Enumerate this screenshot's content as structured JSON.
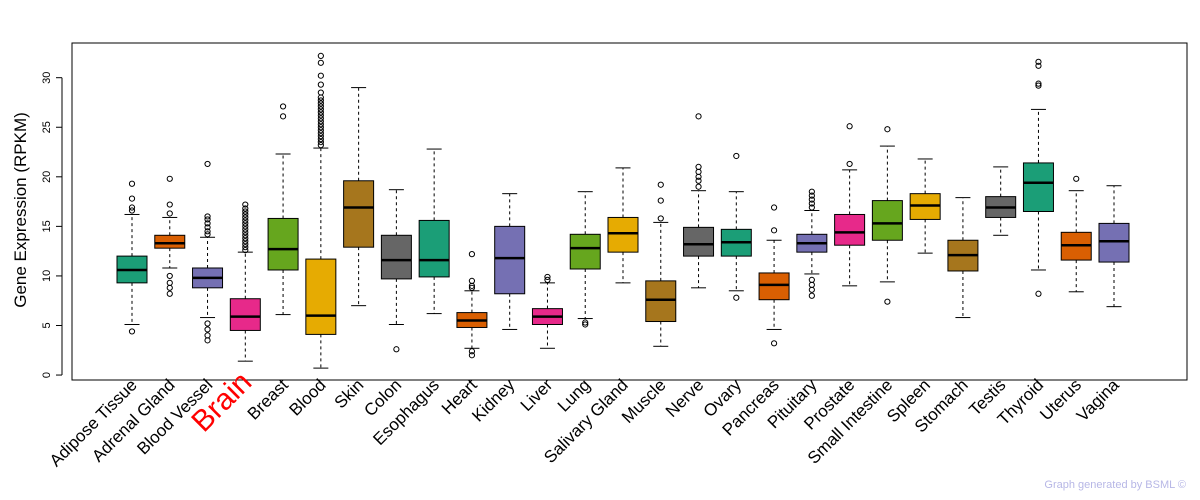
{
  "chart_data": {
    "type": "boxplot",
    "ylabel": "Gene Expression (RPKM)",
    "xlabel": "",
    "ylim": [
      -0.5,
      33.5
    ],
    "yticks": [
      0,
      5,
      10,
      15,
      20,
      25,
      30
    ],
    "highlight_category": "Brain",
    "credit": "Graph generated by BSML ©",
    "categories": [
      {
        "name": "Adipose Tissue",
        "color": "#1b9e77",
        "whisker_low": 5.1,
        "q1": 9.3,
        "median": 10.6,
        "q3": 12.0,
        "whisker_high": 16.2,
        "outliers": [
          4.4,
          16.6,
          16.9,
          17.8,
          19.3
        ]
      },
      {
        "name": "Adrenal Gland",
        "color": "#d95f02",
        "whisker_low": 10.8,
        "q1": 12.8,
        "median": 13.3,
        "q3": 14.1,
        "whisker_high": 15.9,
        "outliers": [
          8.2,
          8.8,
          9.3,
          10.0,
          16.3,
          17.2,
          19.8
        ]
      },
      {
        "name": "Blood Vessel",
        "color": "#7570b3",
        "whisker_low": 5.8,
        "q1": 8.8,
        "median": 9.8,
        "q3": 10.8,
        "whisker_high": 13.9,
        "outliers": [
          3.5,
          4.0,
          4.6,
          5.2,
          14.2,
          14.5,
          14.9,
          15.3,
          15.7,
          16.0,
          21.3
        ]
      },
      {
        "name": "Brain",
        "color": "#e7298a",
        "whisker_low": 1.4,
        "q1": 4.5,
        "median": 5.9,
        "q3": 7.7,
        "whisker_high": 12.4,
        "outliers": [
          12.6,
          12.9,
          13.2,
          13.5,
          13.8,
          14.1,
          14.4,
          14.7,
          15.0,
          15.3,
          15.6,
          15.9,
          16.2,
          16.5,
          16.8,
          17.2
        ]
      },
      {
        "name": "Breast",
        "color": "#66a61e",
        "whisker_low": 6.1,
        "q1": 10.6,
        "median": 12.7,
        "q3": 15.8,
        "whisker_high": 22.3,
        "outliers": [
          26.1,
          27.1
        ]
      },
      {
        "name": "Blood",
        "color": "#e6ab02",
        "whisker_low": 0.7,
        "q1": 4.1,
        "median": 6.0,
        "q3": 11.7,
        "whisker_high": 22.9,
        "outliers": [
          23.2,
          23.5,
          23.8,
          24.1,
          24.4,
          24.7,
          25.0,
          25.3,
          25.6,
          25.9,
          26.2,
          26.5,
          26.8,
          27.1,
          27.4,
          27.7,
          28.0,
          28.5,
          29.3,
          30.2,
          31.5,
          32.2
        ]
      },
      {
        "name": "Skin",
        "color": "#a6761d",
        "whisker_low": 7.0,
        "q1": 12.9,
        "median": 16.9,
        "q3": 19.6,
        "whisker_high": 29.0,
        "outliers": []
      },
      {
        "name": "Colon",
        "color": "#666666",
        "whisker_low": 5.1,
        "q1": 9.7,
        "median": 11.6,
        "q3": 14.1,
        "whisker_high": 18.7,
        "outliers": [
          2.6
        ]
      },
      {
        "name": "Esophagus",
        "color": "#1b9e77",
        "whisker_low": 6.2,
        "q1": 9.9,
        "median": 11.6,
        "q3": 15.6,
        "whisker_high": 22.8,
        "outliers": []
      },
      {
        "name": "Heart",
        "color": "#d95f02",
        "whisker_low": 2.7,
        "q1": 4.8,
        "median": 5.5,
        "q3": 6.3,
        "whisker_high": 8.5,
        "outliers": [
          2.0,
          2.4,
          8.8,
          9.0,
          9.5,
          12.2
        ]
      },
      {
        "name": "Kidney",
        "color": "#7570b3",
        "whisker_low": 4.6,
        "q1": 8.2,
        "median": 11.8,
        "q3": 15.0,
        "whisker_high": 18.3,
        "outliers": []
      },
      {
        "name": "Liver",
        "color": "#e7298a",
        "whisker_low": 2.7,
        "q1": 5.1,
        "median": 5.9,
        "q3": 6.7,
        "whisker_high": 9.3,
        "outliers": [
          9.6,
          9.9
        ]
      },
      {
        "name": "Lung",
        "color": "#66a61e",
        "whisker_low": 5.7,
        "q1": 10.7,
        "median": 12.8,
        "q3": 14.2,
        "whisker_high": 18.5,
        "outliers": [
          5.1,
          5.3
        ]
      },
      {
        "name": "Salivary Gland",
        "color": "#e6ab02",
        "whisker_low": 9.3,
        "q1": 12.4,
        "median": 14.3,
        "q3": 15.9,
        "whisker_high": 20.9,
        "outliers": []
      },
      {
        "name": "Muscle",
        "color": "#a6761d",
        "whisker_low": 2.9,
        "q1": 5.4,
        "median": 7.6,
        "q3": 9.5,
        "whisker_high": 15.4,
        "outliers": [
          15.8,
          17.6,
          19.2
        ]
      },
      {
        "name": "Nerve",
        "color": "#666666",
        "whisker_low": 8.8,
        "q1": 12.0,
        "median": 13.2,
        "q3": 14.9,
        "whisker_high": 18.6,
        "outliers": [
          19.0,
          19.6,
          20.0,
          20.5,
          21.0,
          26.1
        ]
      },
      {
        "name": "Ovary",
        "color": "#1b9e77",
        "whisker_low": 8.5,
        "q1": 12.0,
        "median": 13.4,
        "q3": 14.7,
        "whisker_high": 18.5,
        "outliers": [
          7.8,
          22.1
        ]
      },
      {
        "name": "Pancreas",
        "color": "#d95f02",
        "whisker_low": 4.6,
        "q1": 7.6,
        "median": 9.1,
        "q3": 10.3,
        "whisker_high": 13.6,
        "outliers": [
          3.2,
          14.6,
          16.9
        ]
      },
      {
        "name": "Pituitary",
        "color": "#7570b3",
        "whisker_low": 10.2,
        "q1": 12.4,
        "median": 13.3,
        "q3": 14.2,
        "whisker_high": 16.6,
        "outliers": [
          8.0,
          8.6,
          9.1,
          9.6,
          16.9,
          17.3,
          17.7,
          18.1,
          18.5
        ]
      },
      {
        "name": "Prostate",
        "color": "#e7298a",
        "whisker_low": 9.0,
        "q1": 13.1,
        "median": 14.4,
        "q3": 16.2,
        "whisker_high": 20.7,
        "outliers": [
          21.3,
          25.1
        ]
      },
      {
        "name": "Small Intestine",
        "color": "#66a61e",
        "whisker_low": 9.4,
        "q1": 13.6,
        "median": 15.3,
        "q3": 17.6,
        "whisker_high": 23.1,
        "outliers": [
          7.4,
          24.8
        ]
      },
      {
        "name": "Spleen",
        "color": "#e6ab02",
        "whisker_low": 12.3,
        "q1": 15.7,
        "median": 17.1,
        "q3": 18.3,
        "whisker_high": 21.8,
        "outliers": []
      },
      {
        "name": "Stomach",
        "color": "#a6761d",
        "whisker_low": 5.8,
        "q1": 10.5,
        "median": 12.1,
        "q3": 13.6,
        "whisker_high": 17.9,
        "outliers": []
      },
      {
        "name": "Testis",
        "color": "#666666",
        "whisker_low": 14.1,
        "q1": 15.9,
        "median": 16.9,
        "q3": 18.0,
        "whisker_high": 21.0,
        "outliers": []
      },
      {
        "name": "Thyroid",
        "color": "#1b9e77",
        "whisker_low": 10.6,
        "q1": 16.5,
        "median": 19.4,
        "q3": 21.4,
        "whisker_high": 26.8,
        "outliers": [
          8.2,
          29.2,
          29.4,
          31.2,
          31.6
        ]
      },
      {
        "name": "Uterus",
        "color": "#d95f02",
        "whisker_low": 8.4,
        "q1": 11.6,
        "median": 13.1,
        "q3": 14.4,
        "whisker_high": 18.6,
        "outliers": [
          19.8
        ]
      },
      {
        "name": "Vagina",
        "color": "#7570b3",
        "whisker_low": 6.9,
        "q1": 11.4,
        "median": 13.5,
        "q3": 15.3,
        "whisker_high": 19.1,
        "outliers": []
      }
    ]
  }
}
